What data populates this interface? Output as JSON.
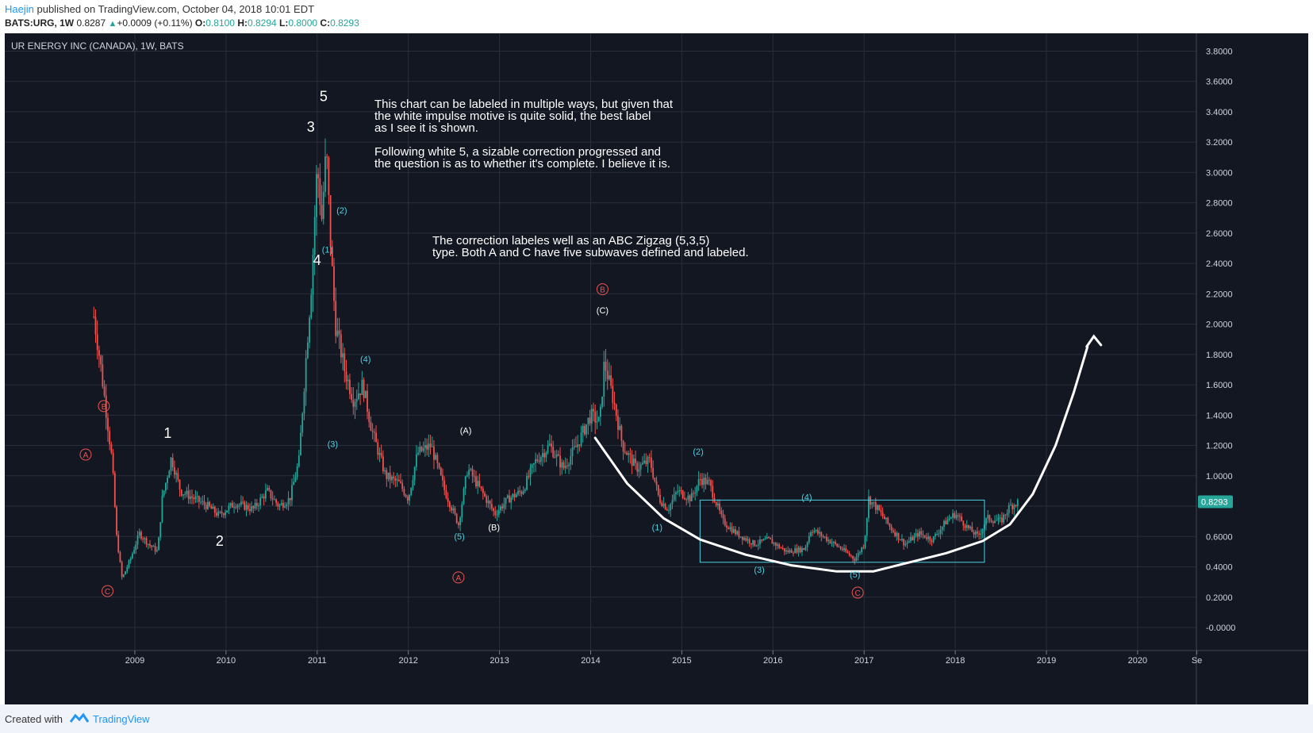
{
  "header": {
    "author": "Haejin",
    "published": "published on TradingView.com, October 04, 2018 10:01 EDT",
    "symbol": "BATS:URG, 1W",
    "last": "0.8287",
    "change": "+0.0009 (+0.11%)",
    "open_label": "O:",
    "open": "0.8100",
    "high_label": "H:",
    "high": "0.8294",
    "low_label": "L:",
    "low": "0.8000",
    "close_label": "C:",
    "close": "0.8293"
  },
  "footer": {
    "created_with": "Created with",
    "brand": "TradingView"
  },
  "colors": {
    "background": "#131722",
    "grid": "#2a2e39",
    "up": "#26a69a",
    "down": "#ef5350",
    "cyan": "#4dd0e1",
    "red_label": "#ef5350",
    "white": "#ffffff",
    "price_badge": "#26a69a"
  },
  "chart_data": {
    "type": "candlestick",
    "title": "UR ENERGY INC (CANADA), 1W, BATS",
    "price_tag": "0.8293",
    "y_ticks": [
      "3.8000",
      "3.6000",
      "3.4000",
      "3.2000",
      "3.0000",
      "2.8000",
      "2.6000",
      "2.4000",
      "2.2000",
      "2.0000",
      "1.8000",
      "1.6000",
      "1.4000",
      "1.2000",
      "1.0000",
      "0.6000",
      "0.4000",
      "0.2000",
      "-0.0000"
    ],
    "ylim": [
      -0.1,
      3.9
    ],
    "x_ticks": [
      "2009",
      "2010",
      "2011",
      "2012",
      "2013",
      "2014",
      "2015",
      "2016",
      "2017",
      "2018",
      "2019",
      "2020",
      "Se"
    ],
    "price_path": [
      {
        "t": 2008.55,
        "p": 2.05
      },
      {
        "t": 2008.62,
        "p": 1.75
      },
      {
        "t": 2008.68,
        "p": 1.45
      },
      {
        "t": 2008.75,
        "p": 1.1
      },
      {
        "t": 2008.8,
        "p": 0.6
      },
      {
        "t": 2008.86,
        "p": 0.32
      },
      {
        "t": 2008.95,
        "p": 0.45
      },
      {
        "t": 2009.05,
        "p": 0.62
      },
      {
        "t": 2009.15,
        "p": 0.55
      },
      {
        "t": 2009.25,
        "p": 0.5
      },
      {
        "t": 2009.3,
        "p": 0.85
      },
      {
        "t": 2009.4,
        "p": 1.12
      },
      {
        "t": 2009.5,
        "p": 0.9
      },
      {
        "t": 2009.65,
        "p": 0.85
      },
      {
        "t": 2009.8,
        "p": 0.8
      },
      {
        "t": 2009.92,
        "p": 0.74
      },
      {
        "t": 2010.1,
        "p": 0.82
      },
      {
        "t": 2010.3,
        "p": 0.78
      },
      {
        "t": 2010.45,
        "p": 0.9
      },
      {
        "t": 2010.58,
        "p": 0.8
      },
      {
        "t": 2010.7,
        "p": 0.85
      },
      {
        "t": 2010.8,
        "p": 1.1
      },
      {
        "t": 2010.88,
        "p": 1.8
      },
      {
        "t": 2010.94,
        "p": 2.3
      },
      {
        "t": 2011.0,
        "p": 3.05
      },
      {
        "t": 2011.05,
        "p": 2.7
      },
      {
        "t": 2011.1,
        "p": 3.15
      },
      {
        "t": 2011.15,
        "p": 2.5
      },
      {
        "t": 2011.2,
        "p": 2.0
      },
      {
        "t": 2011.3,
        "p": 1.7
      },
      {
        "t": 2011.4,
        "p": 1.5
      },
      {
        "t": 2011.5,
        "p": 1.6
      },
      {
        "t": 2011.6,
        "p": 1.3
      },
      {
        "t": 2011.75,
        "p": 1.0
      },
      {
        "t": 2011.9,
        "p": 0.95
      },
      {
        "t": 2012.0,
        "p": 0.85
      },
      {
        "t": 2012.1,
        "p": 1.15
      },
      {
        "t": 2012.25,
        "p": 1.2
      },
      {
        "t": 2012.4,
        "p": 0.9
      },
      {
        "t": 2012.55,
        "p": 0.68
      },
      {
        "t": 2012.65,
        "p": 1.05
      },
      {
        "t": 2012.8,
        "p": 0.9
      },
      {
        "t": 2012.95,
        "p": 0.75
      },
      {
        "t": 2013.1,
        "p": 0.85
      },
      {
        "t": 2013.25,
        "p": 0.9
      },
      {
        "t": 2013.4,
        "p": 1.1
      },
      {
        "t": 2013.55,
        "p": 1.2
      },
      {
        "t": 2013.7,
        "p": 1.05
      },
      {
        "t": 2013.85,
        "p": 1.2
      },
      {
        "t": 2014.0,
        "p": 1.4
      },
      {
        "t": 2014.1,
        "p": 1.35
      },
      {
        "t": 2014.15,
        "p": 1.75
      },
      {
        "t": 2014.25,
        "p": 1.5
      },
      {
        "t": 2014.35,
        "p": 1.2
      },
      {
        "t": 2014.5,
        "p": 1.05
      },
      {
        "t": 2014.65,
        "p": 1.1
      },
      {
        "t": 2014.75,
        "p": 0.85
      },
      {
        "t": 2014.85,
        "p": 0.78
      },
      {
        "t": 2014.95,
        "p": 0.9
      },
      {
        "t": 2015.1,
        "p": 0.85
      },
      {
        "t": 2015.2,
        "p": 0.98
      },
      {
        "t": 2015.3,
        "p": 0.95
      },
      {
        "t": 2015.45,
        "p": 0.7
      },
      {
        "t": 2015.6,
        "p": 0.62
      },
      {
        "t": 2015.8,
        "p": 0.55
      },
      {
        "t": 2015.95,
        "p": 0.58
      },
      {
        "t": 2016.15,
        "p": 0.5
      },
      {
        "t": 2016.35,
        "p": 0.52
      },
      {
        "t": 2016.42,
        "p": 0.65
      },
      {
        "t": 2016.55,
        "p": 0.6
      },
      {
        "t": 2016.75,
        "p": 0.52
      },
      {
        "t": 2016.9,
        "p": 0.45
      },
      {
        "t": 2017.0,
        "p": 0.55
      },
      {
        "t": 2017.05,
        "p": 0.85
      },
      {
        "t": 2017.15,
        "p": 0.78
      },
      {
        "t": 2017.3,
        "p": 0.65
      },
      {
        "t": 2017.45,
        "p": 0.55
      },
      {
        "t": 2017.6,
        "p": 0.62
      },
      {
        "t": 2017.75,
        "p": 0.58
      },
      {
        "t": 2017.9,
        "p": 0.7
      },
      {
        "t": 2018.0,
        "p": 0.75
      },
      {
        "t": 2018.15,
        "p": 0.65
      },
      {
        "t": 2018.25,
        "p": 0.6
      },
      {
        "t": 2018.35,
        "p": 0.72
      },
      {
        "t": 2018.5,
        "p": 0.7
      },
      {
        "t": 2018.6,
        "p": 0.8
      },
      {
        "t": 2018.7,
        "p": 0.83
      }
    ],
    "wave_labels": [
      {
        "text": "1",
        "t": 2009.36,
        "p": 1.25,
        "style": "white"
      },
      {
        "text": "2",
        "t": 2009.93,
        "p": 0.54,
        "style": "white"
      },
      {
        "text": "3",
        "t": 2010.93,
        "p": 3.27,
        "style": "white"
      },
      {
        "text": "4",
        "t": 2011.0,
        "p": 2.39,
        "style": "white"
      },
      {
        "text": "5",
        "t": 2011.07,
        "p": 3.47,
        "style": "white"
      },
      {
        "text": "(2)",
        "t": 2011.27,
        "p": 2.73,
        "style": "cyan"
      },
      {
        "text": "(1)",
        "t": 2011.11,
        "p": 2.47,
        "style": "cyan"
      },
      {
        "text": "(3)",
        "t": 2011.17,
        "p": 1.19,
        "style": "cyan"
      },
      {
        "text": "(4)",
        "t": 2011.53,
        "p": 1.75,
        "style": "cyan"
      },
      {
        "text": "(5)",
        "t": 2012.56,
        "p": 0.58,
        "style": "cyan"
      },
      {
        "text": "(A)",
        "t": 2012.63,
        "p": 1.28,
        "style": "white_small"
      },
      {
        "text": "(B)",
        "t": 2012.94,
        "p": 0.64,
        "style": "white_small"
      },
      {
        "text": "(C)",
        "t": 2014.13,
        "p": 2.07,
        "style": "white_small"
      },
      {
        "text": "(1)",
        "t": 2014.73,
        "p": 0.64,
        "style": "cyan"
      },
      {
        "text": "(2)",
        "t": 2015.18,
        "p": 1.14,
        "style": "cyan"
      },
      {
        "text": "(3)",
        "t": 2015.85,
        "p": 0.36,
        "style": "cyan"
      },
      {
        "text": "(4)",
        "t": 2016.37,
        "p": 0.84,
        "style": "cyan"
      },
      {
        "text": "(5)",
        "t": 2016.9,
        "p": 0.33,
        "style": "cyan"
      }
    ],
    "circle_labels": [
      {
        "text": "B",
        "t": 2008.66,
        "p": 1.46
      },
      {
        "text": "A",
        "t": 2008.46,
        "p": 1.14
      },
      {
        "text": "C",
        "t": 2008.7,
        "p": 0.24
      },
      {
        "text": "A",
        "t": 2012.55,
        "p": 0.33
      },
      {
        "text": "B",
        "t": 2014.13,
        "p": 2.23
      },
      {
        "text": "C",
        "t": 2016.93,
        "p": 0.23
      }
    ],
    "annotations": {
      "text1_lines": [
        "This chart can be labeled in multiple ways, but given that",
        "the white impulse motive is quite solid, the best label",
        "as I see it is shown."
      ],
      "text2_lines": [
        "Following white 5, a sizable correction progressed and",
        "the question is as to whether it's complete. I believe it is."
      ],
      "text3_lines": [
        "The correction labeles well as an ABC Zigzag (5,3,5)",
        "type. Both A and C have five subwaves defined and labeled."
      ]
    },
    "box": {
      "t0": 2015.2,
      "t1": 2018.32,
      "p0": 0.43,
      "p1": 0.84
    },
    "arc": [
      {
        "t": 2014.05,
        "p": 1.25
      },
      {
        "t": 2014.4,
        "p": 0.95
      },
      {
        "t": 2014.8,
        "p": 0.72
      },
      {
        "t": 2015.2,
        "p": 0.58
      },
      {
        "t": 2015.7,
        "p": 0.48
      },
      {
        "t": 2016.2,
        "p": 0.41
      },
      {
        "t": 2016.7,
        "p": 0.37
      },
      {
        "t": 2017.1,
        "p": 0.37
      },
      {
        "t": 2017.5,
        "p": 0.43
      },
      {
        "t": 2017.9,
        "p": 0.49
      },
      {
        "t": 2018.3,
        "p": 0.57
      },
      {
        "t": 2018.6,
        "p": 0.68
      },
      {
        "t": 2018.85,
        "p": 0.88
      },
      {
        "t": 2019.1,
        "p": 1.2
      },
      {
        "t": 2019.3,
        "p": 1.55
      },
      {
        "t": 2019.45,
        "p": 1.85
      }
    ],
    "arrow_tip": {
      "t": 2019.52,
      "p": 1.92
    }
  }
}
